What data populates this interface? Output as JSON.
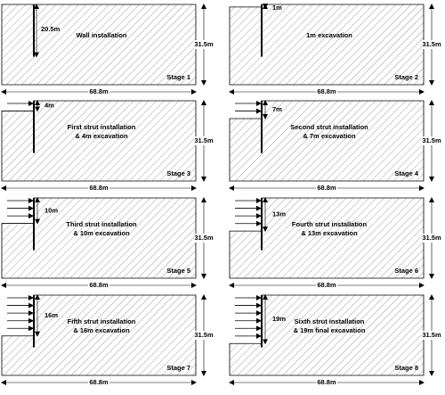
{
  "panels": [
    {
      "stage": "Stage 1",
      "description": [
        "Wall installation"
      ],
      "wall_label": "20.5m",
      "height_label": "31.5m",
      "width_label": "68.8m"
    },
    {
      "stage": "Stage 2",
      "description": [
        "1m excavation"
      ],
      "depth_label": "1m",
      "height_label": "31.5m",
      "width_label": "68.8m"
    },
    {
      "stage": "Stage 3",
      "description": [
        "First strut installation",
        "& 4m excavation"
      ],
      "depth_label": "4m",
      "height_label": "31.5m",
      "width_label": "68.8m"
    },
    {
      "stage": "Stage 4",
      "description": [
        "Second strut installation",
        "& 7m excavation"
      ],
      "depth_label": "7m",
      "height_label": "31.5m",
      "width_label": "68.8m"
    },
    {
      "stage": "Stage 5",
      "description": [
        "Third strut installation",
        "& 10m excavation"
      ],
      "depth_label": "10m",
      "height_label": "31.5m",
      "width_label": "68.8m"
    },
    {
      "stage": "Stage 6",
      "description": [
        "Fourth strut installation",
        "& 13m excavation"
      ],
      "depth_label": "13m",
      "height_label": "31.5m",
      "width_label": "68.8m"
    },
    {
      "stage": "Stage 7",
      "description": [
        "Fifth strut installation",
        "& 16m excavation"
      ],
      "depth_label": "16m",
      "height_label": "31.5m",
      "width_label": "68.8m"
    },
    {
      "stage": "Stage 8",
      "description": [
        "Sixth strut installation",
        "& 19m final excavation"
      ],
      "depth_label": "19m",
      "height_label": "31.5m",
      "width_label": "68.8m"
    }
  ]
}
